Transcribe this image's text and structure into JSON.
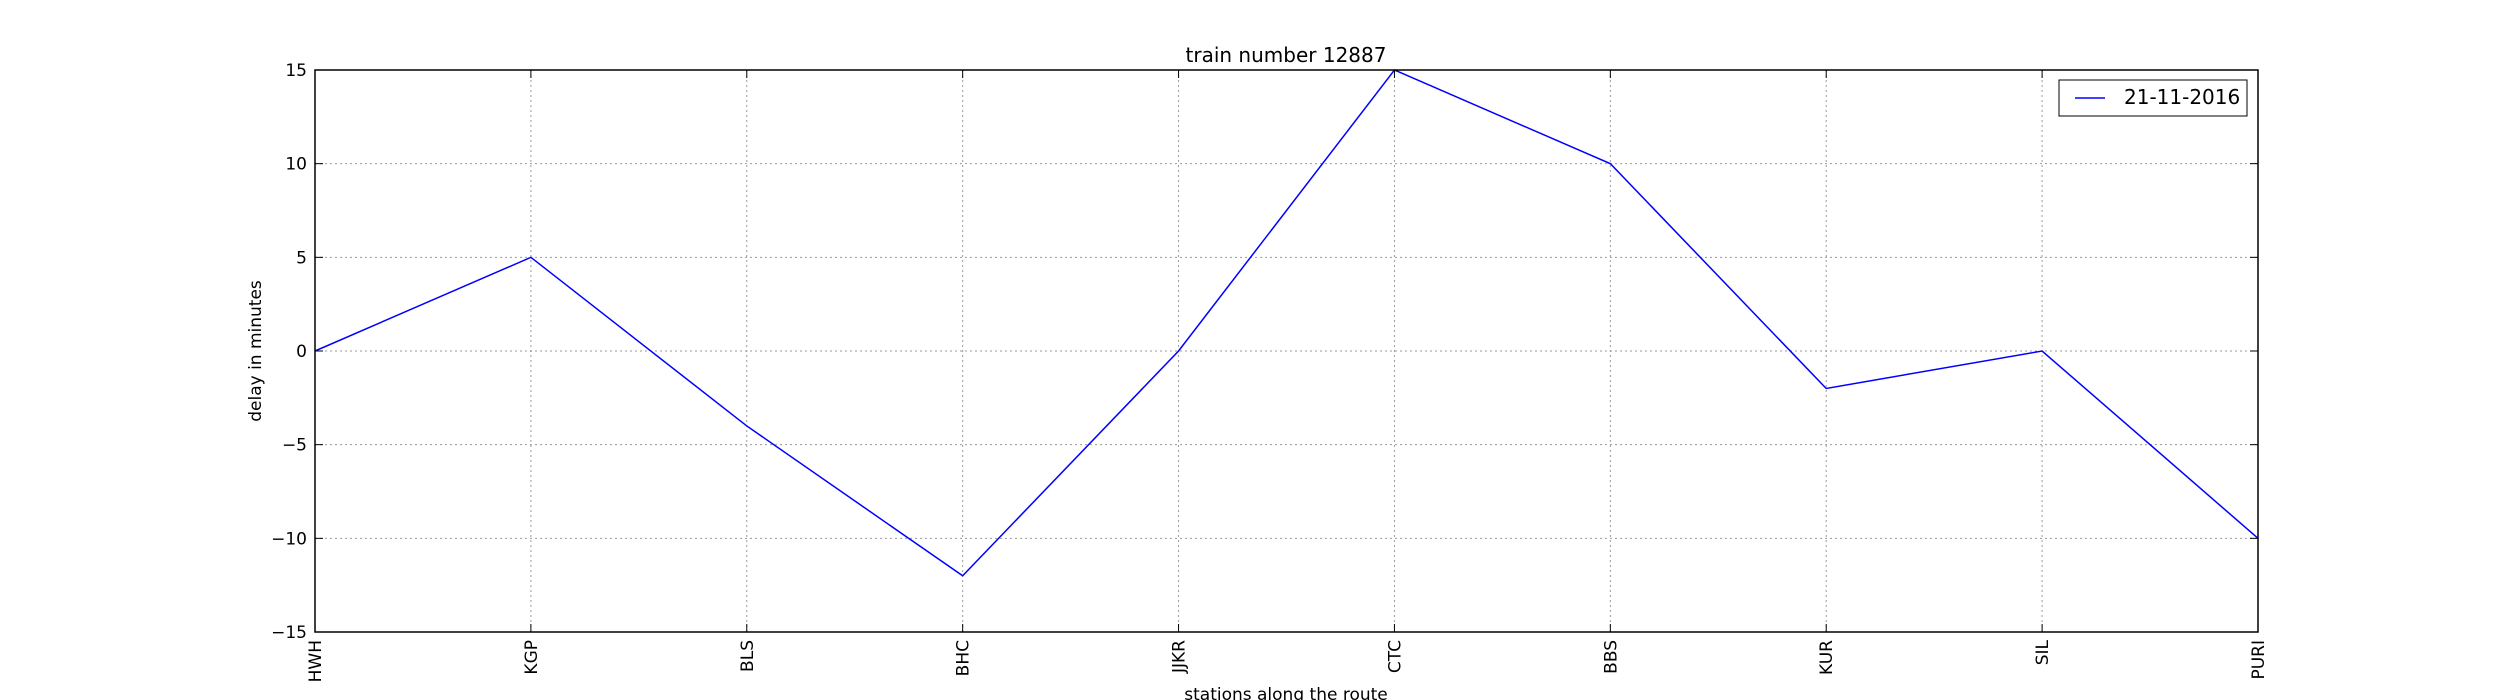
{
  "chart_data": {
    "type": "line",
    "title": "train number 12887",
    "xlabel": "stations along the route",
    "ylabel": "delay in minutes",
    "categories": [
      "HWH",
      "KGP",
      "BLS",
      "BHC",
      "JJKR",
      "CTC",
      "BBS",
      "KUR",
      "SIL",
      "PURI"
    ],
    "series": [
      {
        "name": "21-11-2016",
        "values": [
          0,
          5,
          -4,
          -12,
          0,
          15,
          10,
          -2,
          0,
          -10
        ],
        "color": "#0000ff"
      }
    ],
    "ylim": [
      -15,
      15
    ],
    "yticks": [
      -15,
      -10,
      -5,
      0,
      5,
      10,
      15
    ],
    "ytick_labels": [
      "−15",
      "−10",
      "−5",
      "0",
      "5",
      "10",
      "15"
    ],
    "grid": true,
    "legend": "top-right"
  }
}
